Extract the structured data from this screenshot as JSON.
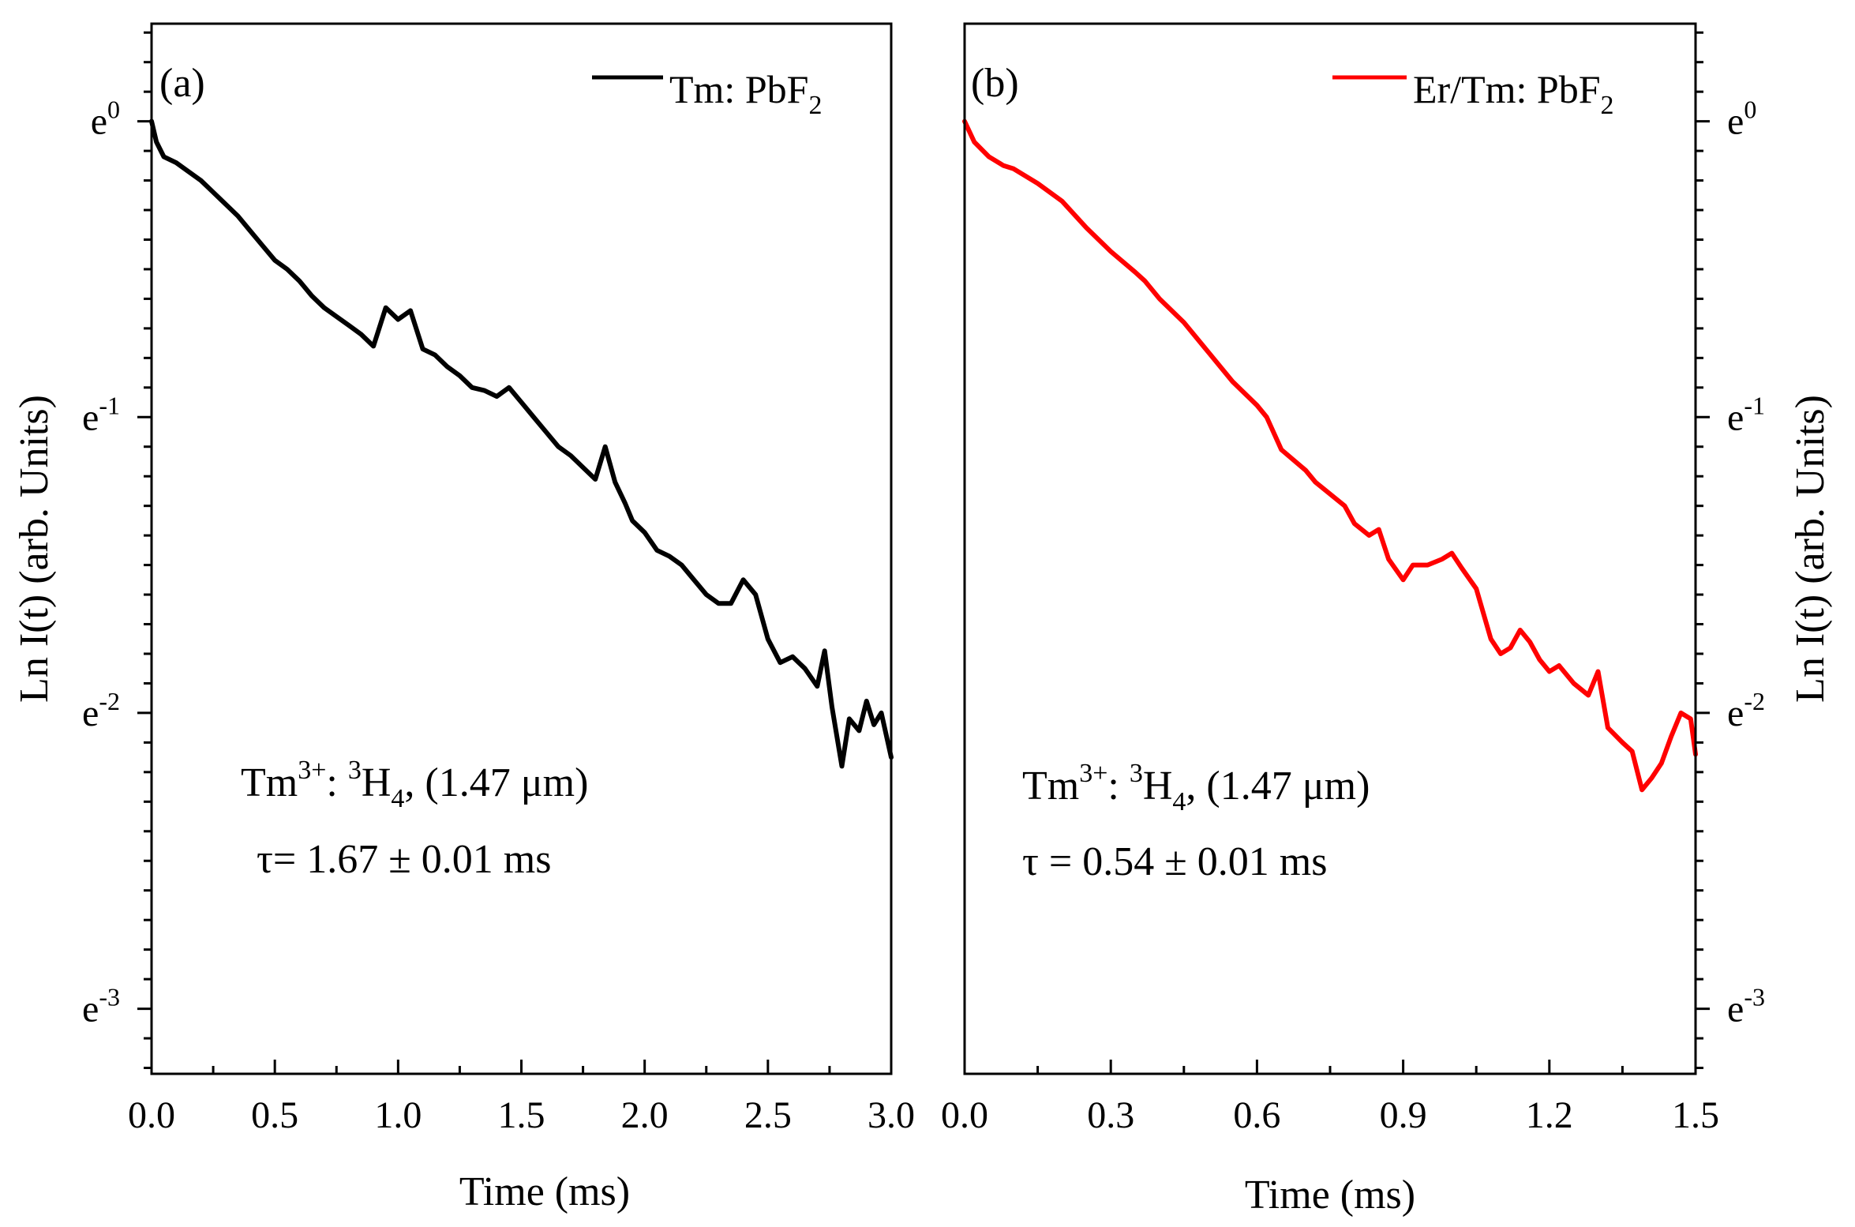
{
  "chart_data": [
    {
      "panel": "(a)",
      "type": "line",
      "xlabel": "Time (ms)",
      "ylabel": "Ln I(t) (arb. Units)",
      "ylabel_side": "left",
      "xlim": [
        0.0,
        3.0
      ],
      "x_ticks": [
        0.0,
        0.5,
        1.0,
        1.5,
        2.0,
        2.5,
        3.0
      ],
      "x_tick_labels": [
        "0.0",
        "0.5",
        "1.0",
        "1.5",
        "2.0",
        "2.5",
        "3.0"
      ],
      "ylim": [
        -3.22,
        0.33
      ],
      "y_ticks": [
        0,
        -1,
        -2,
        -3
      ],
      "y_tick_labels": [
        {
          "base": "e",
          "exp": "0"
        },
        {
          "base": "e",
          "exp": "-1"
        },
        {
          "base": "e",
          "exp": "-2"
        },
        {
          "base": "e",
          "exp": "-3"
        }
      ],
      "legend": {
        "position": "top-right",
        "text": "Tm: PbF",
        "sub": "2"
      },
      "annotation": {
        "line1": {
          "a": "Tm",
          "a_sup": "3+",
          "b": ": ",
          "c_sup": "3",
          "c": "H",
          "c_sub": "4",
          "d": ", (1.47 μm)"
        },
        "line2": "τ= 1.67 ± 0.01 ms"
      },
      "series": [
        {
          "name": "Tm: PbF2",
          "color": "#000000",
          "x": [
            0.0,
            0.02,
            0.05,
            0.1,
            0.15,
            0.2,
            0.25,
            0.3,
            0.35,
            0.4,
            0.45,
            0.5,
            0.55,
            0.6,
            0.65,
            0.7,
            0.75,
            0.8,
            0.85,
            0.9,
            0.95,
            1.0,
            1.05,
            1.1,
            1.15,
            1.2,
            1.25,
            1.3,
            1.35,
            1.4,
            1.45,
            1.5,
            1.55,
            1.6,
            1.65,
            1.7,
            1.75,
            1.8,
            1.84,
            1.88,
            1.92,
            1.95,
            2.0,
            2.05,
            2.1,
            2.15,
            2.2,
            2.25,
            2.3,
            2.35,
            2.4,
            2.45,
            2.5,
            2.55,
            2.6,
            2.65,
            2.7,
            2.73,
            2.76,
            2.8,
            2.83,
            2.87,
            2.9,
            2.93,
            2.96,
            3.0
          ],
          "values": [
            0.0,
            -0.07,
            -0.12,
            -0.14,
            -0.17,
            -0.2,
            -0.24,
            -0.28,
            -0.32,
            -0.37,
            -0.42,
            -0.47,
            -0.5,
            -0.54,
            -0.59,
            -0.63,
            -0.66,
            -0.69,
            -0.72,
            -0.76,
            -0.63,
            -0.67,
            -0.64,
            -0.77,
            -0.79,
            -0.83,
            -0.86,
            -0.9,
            -0.91,
            -0.93,
            -0.9,
            -0.95,
            -1.0,
            -1.05,
            -1.1,
            -1.13,
            -1.17,
            -1.21,
            -1.1,
            -1.22,
            -1.29,
            -1.35,
            -1.39,
            -1.45,
            -1.47,
            -1.5,
            -1.55,
            -1.6,
            -1.63,
            -1.63,
            -1.55,
            -1.6,
            -1.75,
            -1.83,
            -1.81,
            -1.85,
            -1.91,
            -1.79,
            -1.98,
            -2.18,
            -2.02,
            -2.06,
            -1.96,
            -2.04,
            -2.0,
            -2.15
          ]
        }
      ]
    },
    {
      "panel": "(b)",
      "type": "line",
      "xlabel": "Time (ms)",
      "ylabel": "Ln I(t) (arb. Units)",
      "ylabel_side": "right",
      "xlim": [
        0.0,
        1.5
      ],
      "x_ticks": [
        0.0,
        0.3,
        0.6,
        0.9,
        1.2,
        1.5
      ],
      "x_tick_labels": [
        "0.0",
        "0.3",
        "0.6",
        "0.9",
        "1.2",
        "1.5"
      ],
      "ylim": [
        -3.22,
        0.33
      ],
      "y_ticks": [
        0,
        -1,
        -2,
        -3
      ],
      "y_tick_labels": [
        {
          "base": "e",
          "exp": "0"
        },
        {
          "base": "e",
          "exp": "-1"
        },
        {
          "base": "e",
          "exp": "-2"
        },
        {
          "base": "e",
          "exp": "-3"
        }
      ],
      "legend": {
        "position": "top-right",
        "text": "Er/Tm: PbF",
        "sub": "2"
      },
      "annotation": {
        "line1": {
          "a": "Tm",
          "a_sup": "3+",
          "b": ": ",
          "c_sup": "3",
          "c": "H",
          "c_sub": "4",
          "d": ", (1.47 μm)"
        },
        "line2": "τ = 0.54 ± 0.01 ms"
      },
      "series": [
        {
          "name": "Er/Tm: PbF2",
          "color": "#ff0000",
          "x": [
            0.0,
            0.02,
            0.05,
            0.08,
            0.1,
            0.15,
            0.2,
            0.25,
            0.3,
            0.35,
            0.37,
            0.4,
            0.45,
            0.5,
            0.55,
            0.6,
            0.62,
            0.65,
            0.7,
            0.72,
            0.75,
            0.78,
            0.8,
            0.83,
            0.85,
            0.87,
            0.9,
            0.92,
            0.95,
            0.98,
            1.0,
            1.02,
            1.05,
            1.08,
            1.1,
            1.12,
            1.14,
            1.16,
            1.18,
            1.2,
            1.22,
            1.25,
            1.28,
            1.3,
            1.32,
            1.35,
            1.37,
            1.39,
            1.41,
            1.43,
            1.45,
            1.47,
            1.49,
            1.5
          ],
          "values": [
            0.0,
            -0.07,
            -0.12,
            -0.15,
            -0.16,
            -0.21,
            -0.27,
            -0.36,
            -0.44,
            -0.51,
            -0.54,
            -0.6,
            -0.68,
            -0.78,
            -0.88,
            -0.96,
            -1.0,
            -1.11,
            -1.18,
            -1.22,
            -1.26,
            -1.3,
            -1.36,
            -1.4,
            -1.38,
            -1.48,
            -1.55,
            -1.5,
            -1.5,
            -1.48,
            -1.46,
            -1.51,
            -1.58,
            -1.75,
            -1.8,
            -1.78,
            -1.72,
            -1.76,
            -1.82,
            -1.86,
            -1.84,
            -1.9,
            -1.94,
            -1.86,
            -2.05,
            -2.1,
            -2.13,
            -2.26,
            -2.22,
            -2.17,
            -2.08,
            -2.0,
            -2.02,
            -2.14
          ]
        }
      ]
    }
  ]
}
